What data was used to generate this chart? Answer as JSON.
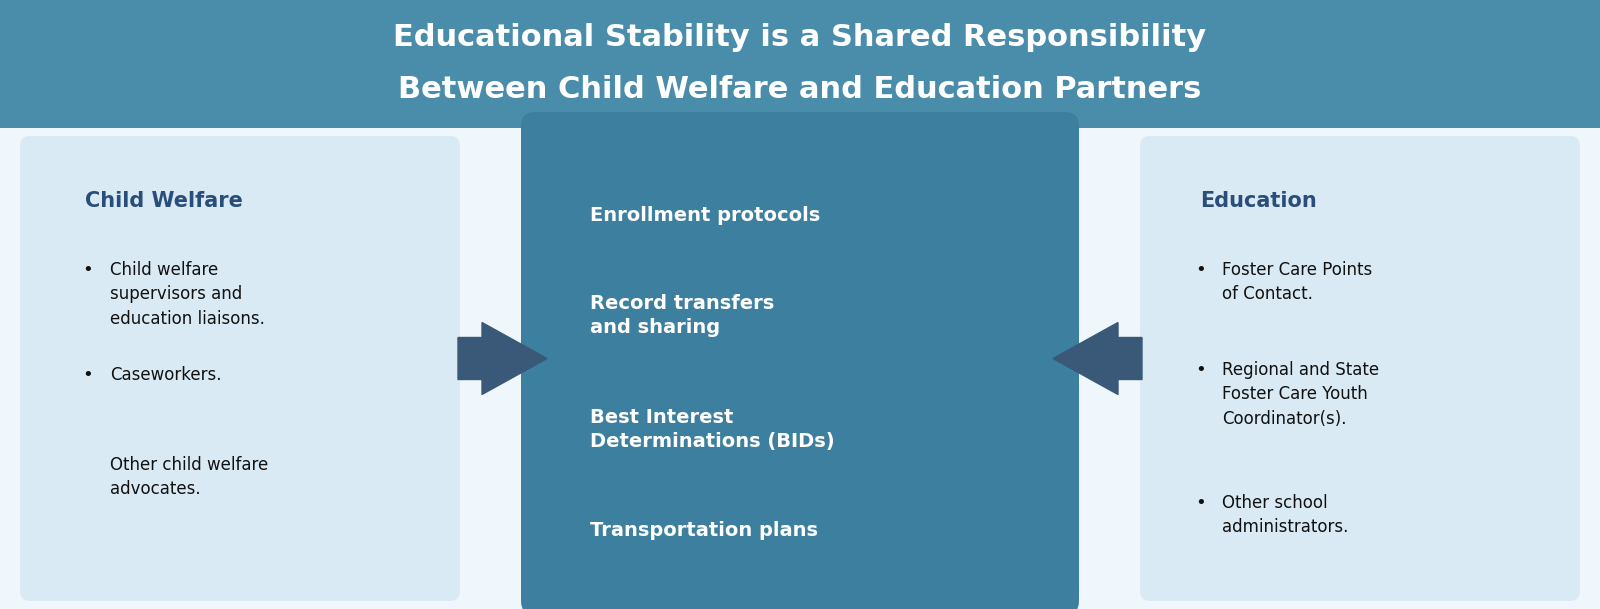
{
  "title_line1": "Educational Stability is a Shared Responsibility",
  "title_line2": "Between Child Welfare and Education Partners",
  "title_bg_color": "#4a8daa",
  "title_text_color": "#ffffff",
  "body_bg_color": "#f0f7fc",
  "left_box_bg": "#daeaf5",
  "center_box_bg": "#3d7f9e",
  "right_box_bg": "#daeaf5",
  "arrow_color": "#3a5878",
  "left_title": "Child Welfare",
  "left_title_color": "#2a4e7a",
  "left_bullets": [
    "Child welfare\nsupervisors and\neducation liaisons.",
    "Caseworkers.",
    "Other child welfare\nadvocates."
  ],
  "left_bullets_has_dot": [
    true,
    true,
    false
  ],
  "center_items": [
    "Enrollment protocols",
    "Record transfers\nand sharing",
    "Best Interest\nDeterminations (BIDs)",
    "Transportation plans"
  ],
  "center_text_color": "#ffffff",
  "right_title": "Education",
  "right_title_color": "#2a4e7a",
  "right_bullets": [
    "Foster Care Points\nof Contact.",
    "Regional and State\nFoster Care Youth\nCoordinator(s).",
    "Other school\nadministrators."
  ],
  "right_bullets_has_dot": [
    true,
    true,
    true
  ],
  "fig_width": 16.0,
  "fig_height": 6.09,
  "dpi": 100
}
